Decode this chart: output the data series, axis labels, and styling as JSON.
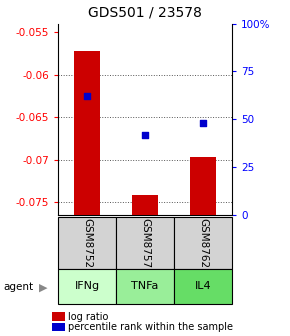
{
  "title": "GDS501 / 23578",
  "samples": [
    "GSM8752",
    "GSM8757",
    "GSM8762"
  ],
  "agents": [
    "IFNg",
    "TNFa",
    "IL4"
  ],
  "log_ratios": [
    -0.0572,
    -0.0742,
    -0.0697
  ],
  "percentile_ranks": [
    62,
    42,
    48
  ],
  "left_ylim": [
    -0.0765,
    -0.054
  ],
  "right_ylim": [
    0,
    100
  ],
  "left_yticks": [
    -0.075,
    -0.07,
    -0.065,
    -0.06,
    -0.055
  ],
  "right_yticks": [
    0,
    25,
    50,
    75,
    100
  ],
  "right_yticklabels": [
    "0",
    "25",
    "50",
    "75",
    "100%"
  ],
  "bar_color": "#cc0000",
  "dot_color": "#0000cc",
  "bar_width": 0.45,
  "agent_colors": [
    "#ccffcc",
    "#99ee99",
    "#66dd66"
  ],
  "sample_box_color": "#d3d3d3",
  "grid_color": "#555555",
  "title_fontsize": 10,
  "tick_fontsize": 7.5,
  "label_fontsize": 8
}
